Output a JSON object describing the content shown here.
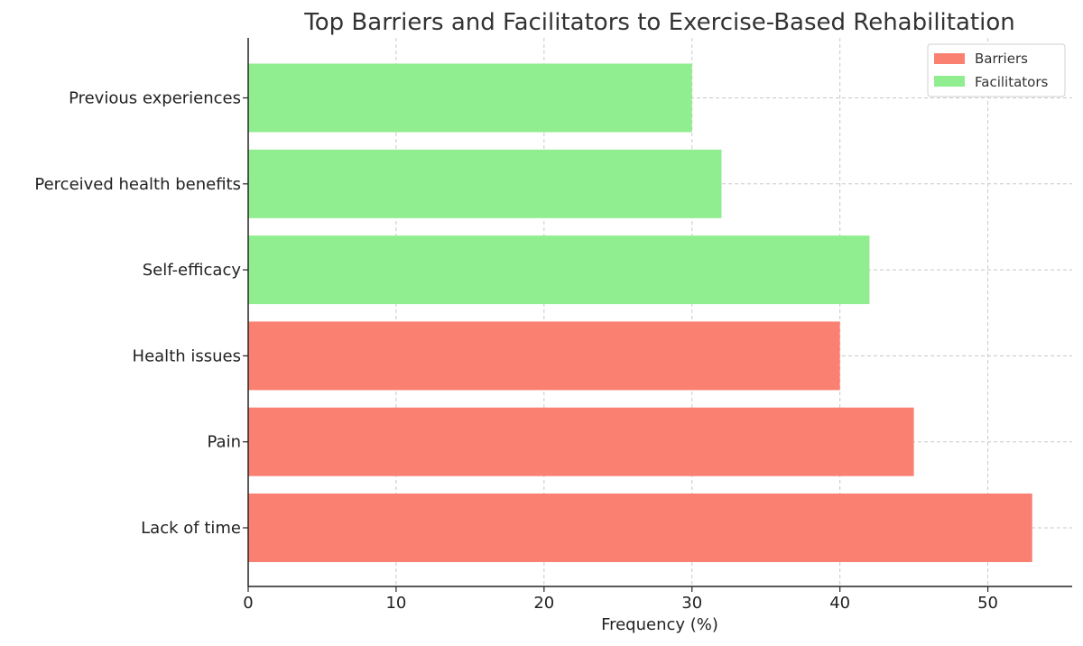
{
  "chart_data": {
    "type": "bar",
    "orientation": "horizontal",
    "title": "Top Barriers and Facilitators to Exercise-Based Rehabilitation",
    "xlabel": "Frequency (%)",
    "ylabel": "",
    "xlim": [
      0,
      55.7
    ],
    "xticks": [
      0,
      10,
      20,
      30,
      40,
      50
    ],
    "grid": true,
    "legend_position": "top-right",
    "categories": [
      "Lack of time",
      "Pain",
      "Health issues",
      "Self-efficacy",
      "Perceived health benefits",
      "Previous experiences"
    ],
    "values": [
      53,
      45,
      40,
      42,
      32,
      30
    ],
    "groups": [
      "Barriers",
      "Barriers",
      "Barriers",
      "Facilitators",
      "Facilitators",
      "Facilitators"
    ],
    "legend": [
      {
        "name": "Barriers",
        "color": "#fa8072"
      },
      {
        "name": "Facilitators",
        "color": "#90ee90"
      }
    ]
  }
}
